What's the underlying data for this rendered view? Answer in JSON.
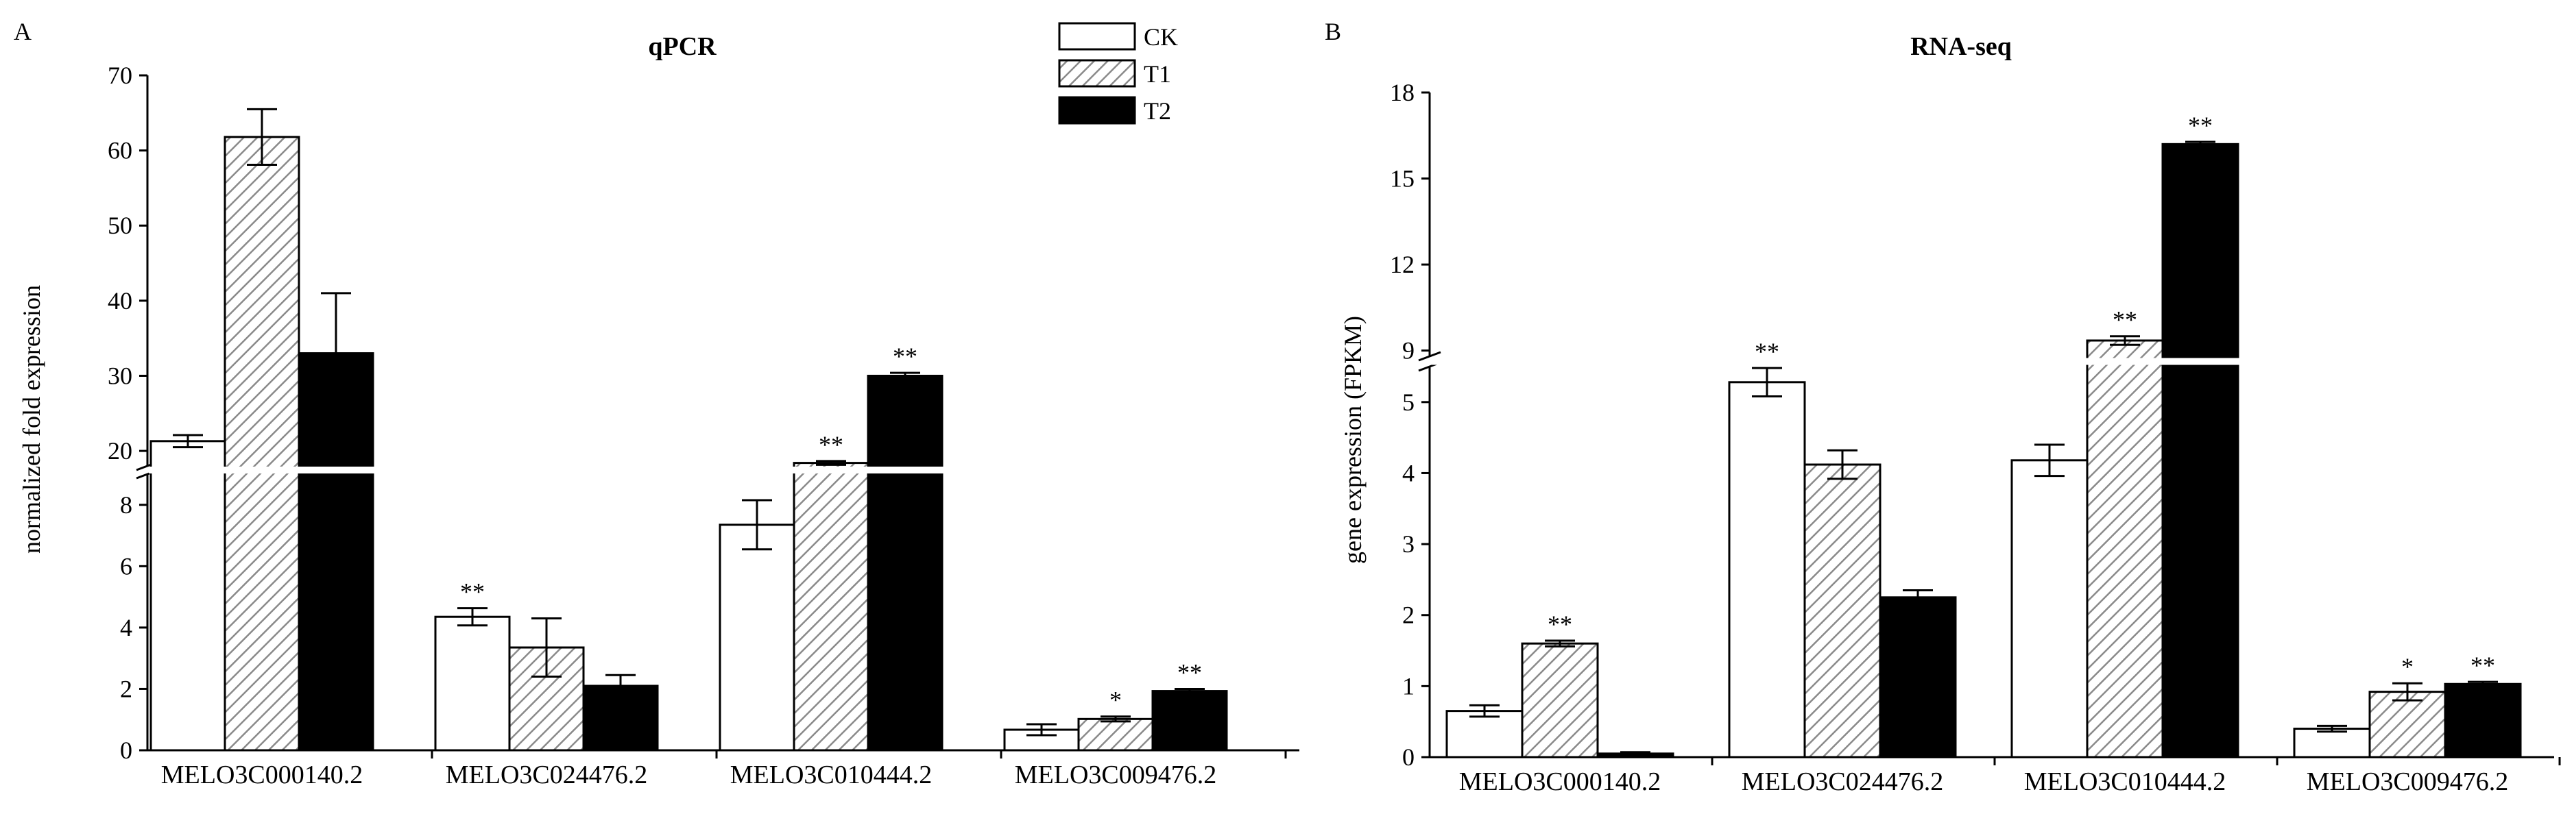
{
  "colors": {
    "CK": "#ffffff",
    "T1": "hatch-diagonal-gray",
    "T2": "#000000",
    "axis": "#000000"
  },
  "legend": {
    "placement": "top-right of panel A",
    "items": [
      "CK",
      "T1",
      "T2"
    ]
  },
  "chart_data": [
    {
      "panel_label": "A",
      "type": "bar",
      "title": "qPCR",
      "xlabel": "",
      "ylabel": "normalized fold expression",
      "categories": [
        "MELO3C000140.2",
        "MELO3C024476.2",
        "MELO3C010444.2",
        "MELO3C009476.2"
      ],
      "series": [
        {
          "name": "CK",
          "values": [
            21.3,
            4.35,
            7.35,
            0.67
          ],
          "errors": [
            0.8,
            0.28,
            0.8,
            0.18
          ]
        },
        {
          "name": "T1",
          "values": [
            61.8,
            3.35,
            18.4,
            1.02
          ],
          "errors": [
            3.7,
            0.95,
            0.25,
            0.08
          ]
        },
        {
          "name": "T2",
          "values": [
            33.0,
            2.1,
            30.0,
            1.93
          ],
          "errors": [
            8.0,
            0.35,
            0.4,
            0.07
          ]
        }
      ],
      "significance": [
        [
          "",
          "**",
          "",
          ""
        ],
        [
          "",
          "",
          "**",
          "*"
        ],
        [
          "",
          "",
          "**",
          "**"
        ]
      ],
      "y_axis": {
        "broken": true,
        "lower_segment": {
          "range": [
            0,
            9
          ],
          "ticks": [
            "0",
            "2",
            "4",
            "6",
            "8"
          ]
        },
        "upper_segment": {
          "range": [
            18,
            70
          ],
          "ticks": [
            "20",
            "30",
            "40",
            "50",
            "60",
            "70"
          ]
        }
      }
    },
    {
      "panel_label": "B",
      "type": "bar",
      "title": "RNA-seq",
      "xlabel": "",
      "ylabel": "gene expression (FPKM)",
      "categories": [
        "MELO3C000140.2",
        "MELO3C024476.2",
        "MELO3C010444.2",
        "MELO3C009476.2"
      ],
      "series": [
        {
          "name": "CK",
          "values": [
            0.65,
            5.28,
            4.18,
            0.4
          ],
          "errors": [
            0.08,
            0.2,
            0.22,
            0.04
          ]
        },
        {
          "name": "T1",
          "values": [
            1.6,
            4.12,
            9.35,
            0.92
          ],
          "errors": [
            0.04,
            0.2,
            0.15,
            0.12
          ]
        },
        {
          "name": "T2",
          "values": [
            0.05,
            2.25,
            16.2,
            1.03
          ],
          "errors": [
            0.02,
            0.1,
            0.08,
            0.03
          ]
        }
      ],
      "significance": [
        [
          "",
          "**",
          "",
          ""
        ],
        [
          "**",
          "",
          "**",
          "*"
        ],
        [
          "",
          "",
          "**",
          "**"
        ]
      ],
      "y_axis": {
        "broken": true,
        "lower_segment": {
          "range": [
            0,
            5.5
          ],
          "ticks": [
            "0",
            "1",
            "2",
            "3",
            "4",
            "5"
          ]
        },
        "upper_segment": {
          "range": [
            8.8,
            18
          ],
          "ticks": [
            "9",
            "12",
            "15",
            "18"
          ]
        }
      }
    }
  ]
}
